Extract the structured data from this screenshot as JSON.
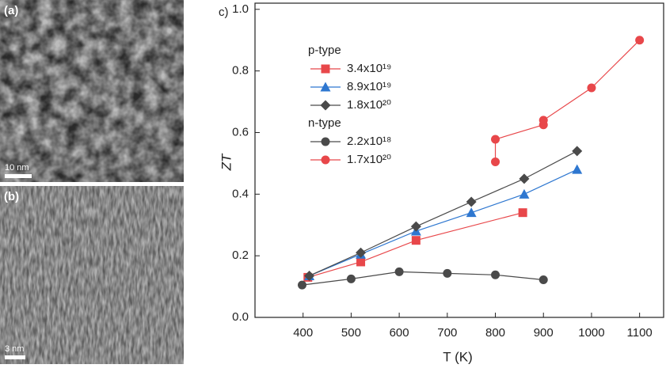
{
  "panels": [
    {
      "label": "(a)",
      "scale": "10 nm"
    },
    {
      "label": "(b)",
      "scale": "3 nm"
    }
  ],
  "chart_data": {
    "type": "line",
    "panel_label": "c)",
    "xlabel": "T (K)",
    "ylabel": "ZT",
    "xlim": [
      300,
      1150
    ],
    "ylim": [
      0,
      1.02
    ],
    "xticks": [
      400,
      500,
      600,
      700,
      800,
      900,
      1000,
      1100
    ],
    "yticks": [
      {
        "value": 0,
        "label": "0.0"
      },
      0.2,
      0.4,
      0.6,
      0.8,
      {
        "value": 1,
        "label": "1.0"
      }
    ],
    "series": [
      {
        "name": "3.4x10¹⁹",
        "group": "p-type",
        "color": "#e8474a",
        "marker": "square",
        "x": [
          410,
          520,
          635,
          857
        ],
        "values": [
          0.13,
          0.18,
          0.25,
          0.34
        ]
      },
      {
        "name": "8.9x10¹⁹",
        "group": "p-type",
        "color": "#2e77d0",
        "marker": "triangle",
        "x": [
          413,
          520,
          635,
          750,
          860,
          970
        ],
        "values": [
          0.135,
          0.205,
          0.28,
          0.34,
          0.4,
          0.48
        ]
      },
      {
        "name": "1.8x10²⁰",
        "group": "p-type",
        "color": "#4a4a4a",
        "marker": "diamond",
        "x": [
          413,
          520,
          635,
          750,
          860,
          970
        ],
        "values": [
          0.135,
          0.21,
          0.295,
          0.375,
          0.45,
          0.54
        ]
      },
      {
        "name": "2.2x10¹⁸",
        "group": "n-type",
        "color": "#4a4a4a",
        "marker": "circle",
        "x": [
          398,
          500,
          600,
          700,
          800,
          900
        ],
        "values": [
          0.105,
          0.125,
          0.148,
          0.143,
          0.138,
          0.122
        ]
      },
      {
        "name": "1.7x10²⁰",
        "group": "n-type",
        "color": "#e8474a",
        "marker": "circle",
        "x": [
          800,
          800,
          900,
          900,
          1000,
          1100
        ],
        "values": [
          0.505,
          0.578,
          0.625,
          0.64,
          0.745,
          0.9
        ]
      }
    ]
  }
}
